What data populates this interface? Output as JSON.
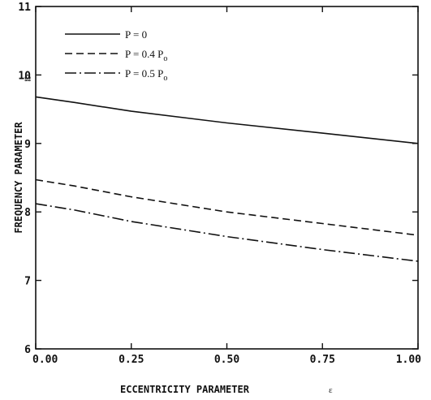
{
  "chart_data": {
    "type": "line",
    "title": "",
    "xlabel": "ECCENTRICITY PARAMETER",
    "xlabel_symbol": "ε",
    "ylabel": "FREQUENCY PARAMETER",
    "ylabel_symbol": "Ω",
    "xlim": [
      0,
      1
    ],
    "ylim": [
      6,
      11
    ],
    "xticks": [
      0,
      0.25,
      0.5,
      0.75,
      1
    ],
    "xtick_labels": [
      "0.00",
      "0.25",
      "0.50",
      "0.75",
      "1.00"
    ],
    "yticks": [
      6,
      7,
      8,
      9,
      10,
      11
    ],
    "ytick_labels": [
      "6",
      "7",
      "8",
      "9",
      "10",
      "11"
    ],
    "grid": false,
    "legend_position": "top-left",
    "series": [
      {
        "name": "P = 0",
        "name_parts": [
          "P = 0",
          ""
        ],
        "line_style": "solid",
        "x": [
          0,
          0.1,
          0.25,
          0.5,
          0.75,
          1.0
        ],
        "y": [
          9.68,
          9.6,
          9.47,
          9.3,
          9.15,
          9.0
        ]
      },
      {
        "name": "P = 0.4 Po",
        "name_parts": [
          "P = 0.4 P",
          "o"
        ],
        "line_style": "dashed",
        "x": [
          0,
          0.1,
          0.25,
          0.5,
          0.75,
          1.0
        ],
        "y": [
          8.47,
          8.38,
          8.22,
          8.0,
          7.83,
          7.66
        ]
      },
      {
        "name": "P = 0.5 Po",
        "name_parts": [
          "P = 0.5 P",
          "o"
        ],
        "line_style": "dashdot",
        "x": [
          0,
          0.1,
          0.25,
          0.5,
          0.75,
          1.0
        ],
        "y": [
          8.12,
          8.03,
          7.86,
          7.64,
          7.45,
          7.28
        ]
      }
    ]
  }
}
